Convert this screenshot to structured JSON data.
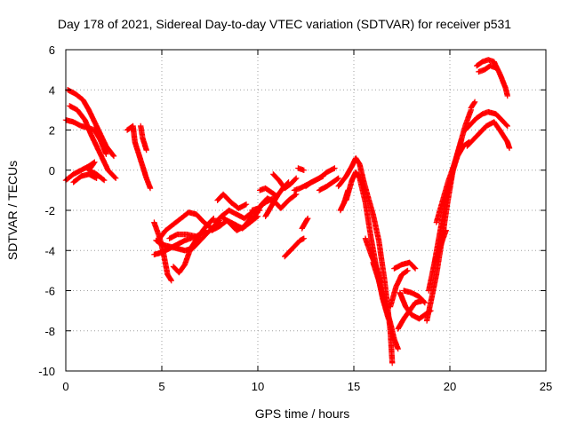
{
  "chart_data": {
    "type": "scatter",
    "title": "Day 178 of 2021, Sidereal Day-to-day VTEC variation (SDTVAR) for receiver p531",
    "xlabel": "GPS time / hours",
    "ylabel": "SDTVAR / TECUs",
    "xlim": [
      0,
      25
    ],
    "ylim": [
      -10,
      6
    ],
    "xticks": [
      0,
      5,
      10,
      15,
      20,
      25
    ],
    "yticks": [
      -10,
      -8,
      -6,
      -4,
      -2,
      0,
      2,
      4,
      6
    ],
    "grid": true,
    "marker": "+",
    "color": "#ff0000",
    "tracks": [
      [
        [
          0.1,
          4.0
        ],
        [
          0.5,
          3.8
        ],
        [
          0.9,
          3.5
        ],
        [
          1.2,
          3.0
        ],
        [
          1.5,
          2.4
        ],
        [
          1.8,
          1.8
        ],
        [
          2.1,
          1.2
        ],
        [
          2.5,
          0.7
        ]
      ],
      [
        [
          0.2,
          3.2
        ],
        [
          0.6,
          3.0
        ],
        [
          1.0,
          2.5
        ],
        [
          1.3,
          1.8
        ],
        [
          1.6,
          1.2
        ],
        [
          1.9,
          0.6
        ],
        [
          2.2,
          0.0
        ],
        [
          2.6,
          -0.4
        ]
      ],
      [
        [
          0.0,
          2.5
        ],
        [
          0.4,
          2.4
        ],
        [
          0.8,
          2.2
        ],
        [
          1.2,
          2.1
        ],
        [
          1.5,
          2.0
        ],
        [
          1.8,
          1.5
        ],
        [
          2.1,
          0.8
        ]
      ],
      [
        [
          0.0,
          -0.5
        ],
        [
          0.4,
          -0.2
        ],
        [
          0.8,
          0.0
        ],
        [
          1.2,
          0.2
        ],
        [
          1.5,
          0.4
        ],
        [
          1.2,
          0.0
        ],
        [
          1.6,
          -0.2
        ],
        [
          2.0,
          -0.5
        ]
      ],
      [
        [
          0.4,
          -0.6
        ],
        [
          0.8,
          -0.3
        ],
        [
          1.2,
          -0.2
        ],
        [
          1.6,
          -0.4
        ]
      ],
      [
        [
          3.2,
          2.0
        ],
        [
          3.5,
          2.2
        ],
        [
          3.6,
          1.4
        ],
        [
          3.8,
          0.8
        ],
        [
          4.0,
          0.2
        ],
        [
          4.2,
          -0.4
        ],
        [
          4.4,
          -0.9
        ]
      ],
      [
        [
          3.9,
          2.2
        ],
        [
          4.0,
          1.6
        ],
        [
          4.2,
          1.0
        ]
      ],
      [
        [
          4.6,
          -2.6
        ],
        [
          4.9,
          -3.4
        ],
        [
          5.1,
          -4.2
        ],
        [
          5.3,
          -5.2
        ],
        [
          5.5,
          -5.5
        ]
      ],
      [
        [
          4.7,
          -3.5
        ],
        [
          5.0,
          -3.7
        ],
        [
          5.4,
          -3.8
        ],
        [
          5.8,
          -3.9
        ],
        [
          6.2,
          -4.0
        ],
        [
          6.6,
          -3.9
        ],
        [
          7.0,
          -3.5
        ],
        [
          7.5,
          -3.0
        ],
        [
          8.0,
          -2.6
        ]
      ],
      [
        [
          4.6,
          -4.2
        ],
        [
          5.0,
          -4.1
        ],
        [
          5.6,
          -3.8
        ],
        [
          6.2,
          -3.5
        ],
        [
          6.8,
          -3.3
        ],
        [
          7.3,
          -3.0
        ]
      ],
      [
        [
          4.8,
          -3.5
        ],
        [
          5.2,
          -3.0
        ],
        [
          5.6,
          -2.7
        ],
        [
          6.0,
          -2.4
        ],
        [
          6.4,
          -2.1
        ],
        [
          6.8,
          -2.2
        ],
        [
          7.2,
          -2.6
        ],
        [
          7.6,
          -2.9
        ],
        [
          8.0,
          -2.5
        ]
      ],
      [
        [
          5.4,
          -3.4
        ],
        [
          5.8,
          -3.2
        ],
        [
          6.3,
          -3.2
        ],
        [
          6.8,
          -3.3
        ]
      ],
      [
        [
          5.6,
          -4.8
        ],
        [
          5.9,
          -5.1
        ],
        [
          6.2,
          -4.7
        ],
        [
          6.5,
          -3.9
        ],
        [
          6.9,
          -3.3
        ],
        [
          7.3,
          -2.8
        ],
        [
          7.7,
          -2.4
        ]
      ],
      [
        [
          7.8,
          -2.6
        ],
        [
          8.1,
          -2.3
        ],
        [
          8.5,
          -2.0
        ],
        [
          8.9,
          -2.2
        ],
        [
          9.3,
          -2.4
        ],
        [
          9.7,
          -2.1
        ],
        [
          10.1,
          -2.0
        ]
      ],
      [
        [
          7.6,
          -3.0
        ],
        [
          8.0,
          -2.8
        ],
        [
          8.4,
          -2.5
        ],
        [
          8.8,
          -2.7
        ],
        [
          9.2,
          -2.9
        ],
        [
          9.6,
          -2.6
        ],
        [
          10.0,
          -2.3
        ]
      ],
      [
        [
          7.9,
          -1.5
        ],
        [
          8.2,
          -1.2
        ],
        [
          8.6,
          -1.6
        ],
        [
          9.0,
          -1.9
        ],
        [
          9.4,
          -1.7
        ]
      ],
      [
        [
          8.1,
          -2.3
        ],
        [
          8.5,
          -2.6
        ],
        [
          8.9,
          -3.0
        ],
        [
          9.3,
          -2.8
        ],
        [
          9.7,
          -2.3
        ]
      ],
      [
        [
          9.6,
          -2.6
        ],
        [
          9.9,
          -2.2
        ],
        [
          10.2,
          -1.7
        ],
        [
          10.5,
          -1.4
        ],
        [
          10.9,
          -1.6
        ],
        [
          11.2,
          -1.9
        ],
        [
          11.6,
          -1.5
        ],
        [
          12.0,
          -1.2
        ]
      ],
      [
        [
          9.7,
          -2.0
        ],
        [
          10.0,
          -1.9
        ],
        [
          10.4,
          -1.6
        ],
        [
          10.8,
          -1.4
        ]
      ],
      [
        [
          10.1,
          -1.0
        ],
        [
          10.4,
          -0.9
        ],
        [
          10.7,
          -1.1
        ],
        [
          11.0,
          -1.3
        ]
      ],
      [
        [
          10.4,
          -2.3
        ],
        [
          10.7,
          -1.8
        ],
        [
          11.0,
          -1.3
        ],
        [
          11.3,
          -0.9
        ],
        [
          11.6,
          -0.6
        ]
      ],
      [
        [
          10.8,
          -0.2
        ],
        [
          11.1,
          -0.5
        ],
        [
          11.4,
          -0.9
        ],
        [
          11.7,
          -0.7
        ],
        [
          12.0,
          -0.4
        ]
      ],
      [
        [
          11.4,
          -4.3
        ],
        [
          11.6,
          -4.1
        ],
        [
          11.9,
          -3.8
        ],
        [
          12.2,
          -3.5
        ],
        [
          12.4,
          -3.4
        ]
      ],
      [
        [
          12.3,
          -2.9
        ],
        [
          12.6,
          -2.4
        ]
      ],
      [
        [
          11.9,
          -1.0
        ],
        [
          12.2,
          -0.9
        ],
        [
          12.6,
          -0.7
        ],
        [
          13.0,
          -0.5
        ],
        [
          13.4,
          -0.3
        ]
      ],
      [
        [
          12.5,
          -0.8
        ],
        [
          12.8,
          -0.6
        ],
        [
          13.2,
          -0.4
        ],
        [
          13.6,
          -0.1
        ],
        [
          14.0,
          0.1
        ]
      ],
      [
        [
          12.1,
          0.1
        ],
        [
          12.4,
          0.0
        ]
      ],
      [
        [
          13.2,
          -1.0
        ],
        [
          13.6,
          -0.8
        ],
        [
          13.9,
          -0.6
        ],
        [
          14.2,
          -0.4
        ]
      ],
      [
        [
          14.2,
          -0.8
        ],
        [
          14.6,
          -0.3
        ],
        [
          14.9,
          0.2
        ],
        [
          15.1,
          0.6
        ],
        [
          15.3,
          0.3
        ],
        [
          15.5,
          -0.5
        ],
        [
          15.7,
          -1.2
        ],
        [
          16.0,
          -2.2
        ],
        [
          16.3,
          -3.5
        ],
        [
          16.6,
          -5.5
        ],
        [
          16.9,
          -8.0
        ],
        [
          17.0,
          -9.6
        ]
      ],
      [
        [
          14.6,
          -1.5
        ],
        [
          14.9,
          -0.5
        ],
        [
          15.1,
          -0.1
        ],
        [
          15.3,
          -0.4
        ],
        [
          15.6,
          -1.6
        ],
        [
          15.9,
          -3.4
        ],
        [
          16.2,
          -5.0
        ],
        [
          16.5,
          -6.4
        ],
        [
          16.8,
          -7.4
        ]
      ],
      [
        [
          14.3,
          -2.0
        ],
        [
          14.5,
          -1.6
        ],
        [
          14.7,
          -1.0
        ]
      ],
      [
        [
          15.6,
          -3.4
        ],
        [
          15.9,
          -4.2
        ],
        [
          16.2,
          -4.9
        ],
        [
          16.4,
          -5.6
        ]
      ],
      [
        [
          16.0,
          -4.6
        ],
        [
          16.3,
          -5.5
        ],
        [
          16.6,
          -6.6
        ],
        [
          16.9,
          -7.6
        ],
        [
          17.1,
          -8.4
        ],
        [
          17.3,
          -8.9
        ]
      ],
      [
        [
          16.9,
          -6.8
        ],
        [
          17.2,
          -5.8
        ],
        [
          17.5,
          -5.2
        ],
        [
          17.8,
          -5.0
        ]
      ],
      [
        [
          17.3,
          -7.9
        ],
        [
          17.6,
          -7.4
        ],
        [
          17.9,
          -7.0
        ],
        [
          18.2,
          -6.6
        ],
        [
          18.6,
          -6.5
        ]
      ],
      [
        [
          17.4,
          -6.1
        ],
        [
          17.7,
          -6.8
        ],
        [
          18.0,
          -7.2
        ],
        [
          18.4,
          -7.4
        ],
        [
          18.7,
          -7.2
        ],
        [
          19.0,
          -7.0
        ]
      ],
      [
        [
          17.6,
          -6.0
        ],
        [
          18.0,
          -6.1
        ],
        [
          18.4,
          -6.3
        ],
        [
          18.7,
          -6.6
        ]
      ],
      [
        [
          17.1,
          -4.9
        ],
        [
          17.5,
          -4.7
        ],
        [
          17.9,
          -4.6
        ],
        [
          18.2,
          -4.9
        ]
      ],
      [
        [
          18.8,
          -7.5
        ],
        [
          19.0,
          -6.6
        ],
        [
          19.3,
          -5.2
        ],
        [
          19.6,
          -3.4
        ],
        [
          19.9,
          -1.5
        ],
        [
          20.2,
          0.2
        ],
        [
          20.5,
          1.2
        ],
        [
          20.8,
          2.2
        ],
        [
          21.1,
          3.0
        ]
      ],
      [
        [
          18.9,
          -6.0
        ],
        [
          19.2,
          -4.6
        ],
        [
          19.5,
          -3.0
        ],
        [
          19.8,
          -1.4
        ],
        [
          20.1,
          -0.2
        ],
        [
          20.4,
          0.7
        ],
        [
          20.7,
          1.2
        ],
        [
          21.0,
          1.4
        ]
      ],
      [
        [
          19.3,
          -2.6
        ],
        [
          19.6,
          -1.6
        ],
        [
          19.9,
          -0.6
        ],
        [
          20.3,
          0.5
        ],
        [
          20.6,
          1.5
        ]
      ],
      [
        [
          19.2,
          -4.6
        ],
        [
          19.5,
          -3.8
        ],
        [
          19.8,
          -3.0
        ]
      ],
      [
        [
          20.8,
          2.0
        ],
        [
          21.1,
          2.3
        ],
        [
          21.4,
          2.6
        ],
        [
          21.7,
          2.8
        ],
        [
          22.0,
          2.9
        ],
        [
          22.4,
          2.8
        ],
        [
          22.8,
          2.4
        ],
        [
          23.0,
          2.2
        ]
      ],
      [
        [
          20.9,
          1.2
        ],
        [
          21.2,
          1.5
        ],
        [
          21.5,
          1.8
        ],
        [
          21.9,
          2.2
        ],
        [
          22.3,
          2.4
        ],
        [
          22.6,
          2.0
        ],
        [
          23.0,
          1.4
        ],
        [
          23.1,
          1.1
        ]
      ],
      [
        [
          21.1,
          3.1
        ],
        [
          21.3,
          3.4
        ]
      ],
      [
        [
          21.4,
          5.2
        ],
        [
          21.7,
          5.4
        ],
        [
          22.0,
          5.5
        ],
        [
          22.3,
          5.4
        ],
        [
          22.6,
          4.8
        ],
        [
          22.9,
          4.1
        ],
        [
          23.0,
          3.7
        ]
      ],
      [
        [
          21.5,
          4.9
        ],
        [
          21.8,
          5.0
        ],
        [
          22.1,
          5.2
        ],
        [
          22.4,
          5.1
        ]
      ]
    ]
  }
}
